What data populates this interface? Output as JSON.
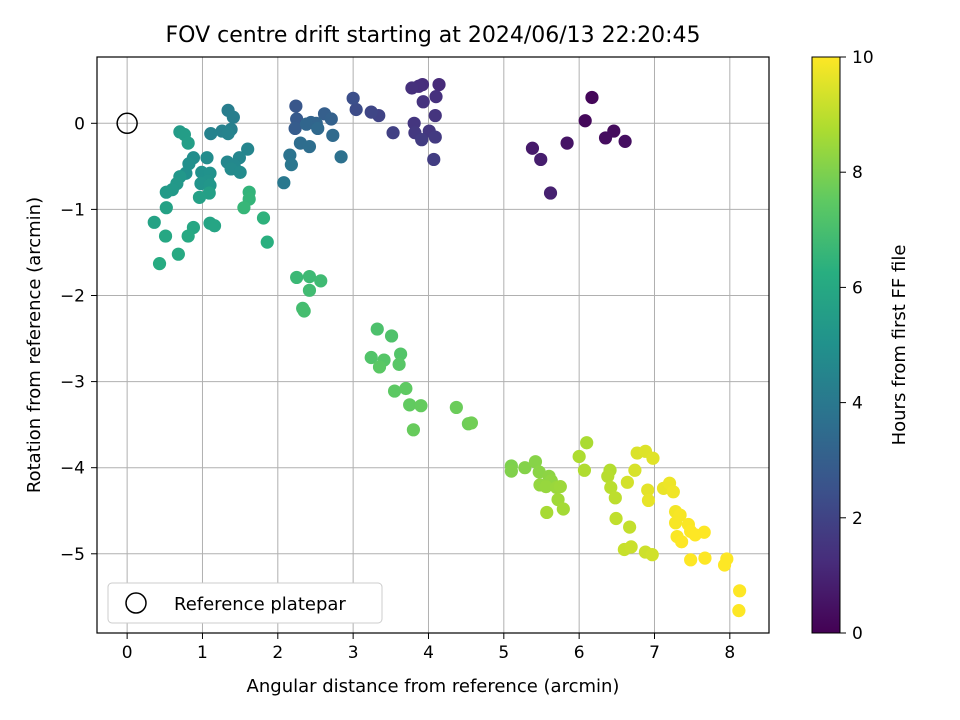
{
  "chart_data": {
    "type": "scatter",
    "title": "FOV centre drift starting at 2024/06/13 22:20:45",
    "xlabel": "Angular distance from reference (arcmin)",
    "ylabel": "Rotation from reference (arcmin)",
    "xlim": [
      -0.4,
      8.52
    ],
    "ylim": [
      -5.92,
      0.77
    ],
    "xticks": [
      "0",
      "1",
      "2",
      "3",
      "4",
      "5",
      "6",
      "7",
      "8"
    ],
    "yticks": [
      "0",
      "−1",
      "−2",
      "−3",
      "−4",
      "−5"
    ],
    "grid": true,
    "legend": {
      "placement": "lower-left",
      "entries": [
        "Reference platepar"
      ]
    },
    "reference_point": {
      "x": 0,
      "y": 0
    },
    "colorbar": {
      "label": "Hours from first FF file",
      "range": [
        0,
        10
      ],
      "ticks": [
        "0",
        "2",
        "4",
        "6",
        "8",
        "10"
      ],
      "colormap": "viridis"
    },
    "points": [
      {
        "x": 6.17,
        "y": 0.3,
        "h": 0.15
      },
      {
        "x": 6.08,
        "y": 0.03,
        "h": 0.2
      },
      {
        "x": 6.46,
        "y": -0.09,
        "h": 0.3
      },
      {
        "x": 6.35,
        "y": -0.17,
        "h": 0.35
      },
      {
        "x": 6.61,
        "y": -0.21,
        "h": 0.4
      },
      {
        "x": 5.84,
        "y": -0.23,
        "h": 0.55
      },
      {
        "x": 5.38,
        "y": -0.29,
        "h": 0.7
      },
      {
        "x": 5.49,
        "y": -0.42,
        "h": 0.8
      },
      {
        "x": 5.62,
        "y": -0.81,
        "h": 0.9
      },
      {
        "x": 4.14,
        "y": 0.45,
        "h": 1.2
      },
      {
        "x": 3.92,
        "y": 0.45,
        "h": 1.25
      },
      {
        "x": 3.87,
        "y": 0.43,
        "h": 1.3
      },
      {
        "x": 3.78,
        "y": 0.41,
        "h": 1.35
      },
      {
        "x": 4.1,
        "y": 0.31,
        "h": 1.4
      },
      {
        "x": 3.93,
        "y": 0.25,
        "h": 1.45
      },
      {
        "x": 4.09,
        "y": 0.09,
        "h": 1.5
      },
      {
        "x": 3.81,
        "y": 0.0,
        "h": 1.55
      },
      {
        "x": 4.01,
        "y": -0.09,
        "h": 1.6
      },
      {
        "x": 3.82,
        "y": -0.11,
        "h": 1.65
      },
      {
        "x": 4.09,
        "y": -0.16,
        "h": 1.7
      },
      {
        "x": 3.91,
        "y": -0.19,
        "h": 1.75
      },
      {
        "x": 4.07,
        "y": -0.42,
        "h": 1.8
      },
      {
        "x": 3.53,
        "y": -0.11,
        "h": 1.9
      },
      {
        "x": 3.34,
        "y": 0.09,
        "h": 2.0
      },
      {
        "x": 3.24,
        "y": 0.13,
        "h": 2.1
      },
      {
        "x": 3.04,
        "y": 0.16,
        "h": 2.3
      },
      {
        "x": 3.0,
        "y": 0.29,
        "h": 2.4
      },
      {
        "x": 2.24,
        "y": 0.2,
        "h": 2.7
      },
      {
        "x": 2.25,
        "y": 0.05,
        "h": 2.8
      },
      {
        "x": 2.23,
        "y": -0.06,
        "h": 2.9
      },
      {
        "x": 2.62,
        "y": 0.11,
        "h": 3.0
      },
      {
        "x": 2.71,
        "y": 0.05,
        "h": 3.1
      },
      {
        "x": 2.44,
        "y": 0.01,
        "h": 3.2
      },
      {
        "x": 2.51,
        "y": 0.0,
        "h": 3.25
      },
      {
        "x": 2.38,
        "y": -0.01,
        "h": 3.3
      },
      {
        "x": 2.53,
        "y": -0.06,
        "h": 3.4
      },
      {
        "x": 2.73,
        "y": -0.14,
        "h": 3.45
      },
      {
        "x": 2.3,
        "y": -0.23,
        "h": 3.55
      },
      {
        "x": 2.42,
        "y": -0.27,
        "h": 3.6
      },
      {
        "x": 2.84,
        "y": -0.39,
        "h": 3.7
      },
      {
        "x": 2.16,
        "y": -0.37,
        "h": 3.8
      },
      {
        "x": 2.18,
        "y": -0.48,
        "h": 3.9
      },
      {
        "x": 2.08,
        "y": -0.69,
        "h": 4.0
      },
      {
        "x": 1.34,
        "y": 0.15,
        "h": 4.2
      },
      {
        "x": 1.41,
        "y": 0.07,
        "h": 4.25
      },
      {
        "x": 1.38,
        "y": -0.07,
        "h": 4.3
      },
      {
        "x": 1.26,
        "y": -0.09,
        "h": 4.35
      },
      {
        "x": 1.11,
        "y": -0.12,
        "h": 4.4
      },
      {
        "x": 1.34,
        "y": -0.12,
        "h": 4.45
      },
      {
        "x": 1.6,
        "y": -0.3,
        "h": 4.5
      },
      {
        "x": 1.49,
        "y": -0.4,
        "h": 4.55
      },
      {
        "x": 1.33,
        "y": -0.45,
        "h": 4.6
      },
      {
        "x": 1.42,
        "y": -0.49,
        "h": 4.65
      },
      {
        "x": 1.38,
        "y": -0.53,
        "h": 4.7
      },
      {
        "x": 1.5,
        "y": -0.57,
        "h": 4.75
      },
      {
        "x": 1.06,
        "y": -0.4,
        "h": 4.8
      },
      {
        "x": 0.88,
        "y": -0.4,
        "h": 4.85
      },
      {
        "x": 0.82,
        "y": -0.47,
        "h": 4.9
      },
      {
        "x": 0.78,
        "y": -0.58,
        "h": 4.95
      },
      {
        "x": 0.99,
        "y": -0.57,
        "h": 5.0
      },
      {
        "x": 1.1,
        "y": -0.58,
        "h": 5.05
      },
      {
        "x": 1.07,
        "y": -0.67,
        "h": 5.1
      },
      {
        "x": 0.98,
        "y": -0.7,
        "h": 5.15
      },
      {
        "x": 1.1,
        "y": -0.72,
        "h": 5.2
      },
      {
        "x": 0.7,
        "y": -0.62,
        "h": 5.25
      },
      {
        "x": 0.66,
        "y": -0.7,
        "h": 5.3
      },
      {
        "x": 0.6,
        "y": -0.77,
        "h": 5.35
      },
      {
        "x": 0.52,
        "y": -0.8,
        "h": 5.4
      },
      {
        "x": 0.7,
        "y": -0.1,
        "h": 5.45
      },
      {
        "x": 0.76,
        "y": -0.13,
        "h": 5.5
      },
      {
        "x": 0.81,
        "y": -0.23,
        "h": 5.55
      },
      {
        "x": 1.09,
        "y": -0.81,
        "h": 5.6
      },
      {
        "x": 0.96,
        "y": -0.86,
        "h": 5.65
      },
      {
        "x": 0.52,
        "y": -0.98,
        "h": 5.7
      },
      {
        "x": 0.36,
        "y": -1.15,
        "h": 5.75
      },
      {
        "x": 1.1,
        "y": -1.16,
        "h": 5.8
      },
      {
        "x": 1.16,
        "y": -1.19,
        "h": 5.85
      },
      {
        "x": 0.88,
        "y": -1.21,
        "h": 5.9
      },
      {
        "x": 0.51,
        "y": -1.31,
        "h": 5.95
      },
      {
        "x": 0.81,
        "y": -1.31,
        "h": 6.0
      },
      {
        "x": 0.68,
        "y": -1.52,
        "h": 6.05
      },
      {
        "x": 0.43,
        "y": -1.63,
        "h": 6.1
      },
      {
        "x": 1.86,
        "y": -1.38,
        "h": 6.3
      },
      {
        "x": 1.81,
        "y": -1.1,
        "h": 6.4
      },
      {
        "x": 1.62,
        "y": -0.8,
        "h": 6.5
      },
      {
        "x": 1.62,
        "y": -0.88,
        "h": 6.55
      },
      {
        "x": 1.55,
        "y": -0.98,
        "h": 6.6
      },
      {
        "x": 2.25,
        "y": -1.79,
        "h": 6.7
      },
      {
        "x": 2.42,
        "y": -1.78,
        "h": 6.75
      },
      {
        "x": 2.57,
        "y": -1.83,
        "h": 6.8
      },
      {
        "x": 2.42,
        "y": -1.94,
        "h": 6.85
      },
      {
        "x": 2.33,
        "y": -2.15,
        "h": 6.9
      },
      {
        "x": 2.35,
        "y": -2.18,
        "h": 6.95
      },
      {
        "x": 3.32,
        "y": -2.39,
        "h": 7.1
      },
      {
        "x": 3.51,
        "y": -2.47,
        "h": 7.15
      },
      {
        "x": 3.24,
        "y": -2.72,
        "h": 7.2
      },
      {
        "x": 3.63,
        "y": -2.68,
        "h": 7.25
      },
      {
        "x": 3.41,
        "y": -2.75,
        "h": 7.3
      },
      {
        "x": 3.61,
        "y": -2.8,
        "h": 7.35
      },
      {
        "x": 3.35,
        "y": -2.83,
        "h": 7.4
      },
      {
        "x": 3.55,
        "y": -3.11,
        "h": 7.45
      },
      {
        "x": 3.7,
        "y": -3.08,
        "h": 7.5
      },
      {
        "x": 3.75,
        "y": -3.27,
        "h": 7.55
      },
      {
        "x": 3.9,
        "y": -3.28,
        "h": 7.6
      },
      {
        "x": 3.8,
        "y": -3.56,
        "h": 7.65
      },
      {
        "x": 4.37,
        "y": -3.3,
        "h": 7.7
      },
      {
        "x": 4.53,
        "y": -3.49,
        "h": 7.75
      },
      {
        "x": 4.57,
        "y": -3.48,
        "h": 7.8
      },
      {
        "x": 5.1,
        "y": -3.98,
        "h": 8.0
      },
      {
        "x": 5.1,
        "y": -4.04,
        "h": 8.05
      },
      {
        "x": 5.28,
        "y": -4.0,
        "h": 8.1
      },
      {
        "x": 5.42,
        "y": -3.93,
        "h": 8.15
      },
      {
        "x": 5.47,
        "y": -4.05,
        "h": 8.2
      },
      {
        "x": 5.6,
        "y": -4.1,
        "h": 8.25
      },
      {
        "x": 5.63,
        "y": -4.15,
        "h": 8.3
      },
      {
        "x": 5.48,
        "y": -4.2,
        "h": 8.35
      },
      {
        "x": 5.56,
        "y": -4.22,
        "h": 8.4
      },
      {
        "x": 5.7,
        "y": -4.23,
        "h": 8.45
      },
      {
        "x": 5.75,
        "y": -4.22,
        "h": 8.5
      },
      {
        "x": 5.72,
        "y": -4.37,
        "h": 8.55
      },
      {
        "x": 5.79,
        "y": -4.48,
        "h": 8.6
      },
      {
        "x": 5.57,
        "y": -4.52,
        "h": 8.65
      },
      {
        "x": 6.1,
        "y": -3.71,
        "h": 8.7
      },
      {
        "x": 6.0,
        "y": -3.87,
        "h": 8.75
      },
      {
        "x": 6.07,
        "y": -4.03,
        "h": 8.8
      },
      {
        "x": 6.41,
        "y": -4.03,
        "h": 8.85
      },
      {
        "x": 6.38,
        "y": -4.1,
        "h": 8.9
      },
      {
        "x": 6.42,
        "y": -4.23,
        "h": 8.95
      },
      {
        "x": 6.48,
        "y": -4.35,
        "h": 9.0
      },
      {
        "x": 6.49,
        "y": -4.59,
        "h": 9.05
      },
      {
        "x": 6.67,
        "y": -4.69,
        "h": 9.1
      },
      {
        "x": 6.6,
        "y": -4.95,
        "h": 9.15
      },
      {
        "x": 6.69,
        "y": -4.92,
        "h": 9.2
      },
      {
        "x": 6.88,
        "y": -4.98,
        "h": 9.25
      },
      {
        "x": 6.97,
        "y": -5.01,
        "h": 9.3
      },
      {
        "x": 6.64,
        "y": -4.17,
        "h": 9.35
      },
      {
        "x": 6.74,
        "y": -4.03,
        "h": 9.4
      },
      {
        "x": 6.77,
        "y": -3.83,
        "h": 9.45
      },
      {
        "x": 6.88,
        "y": -3.81,
        "h": 9.5
      },
      {
        "x": 6.98,
        "y": -3.89,
        "h": 9.55
      },
      {
        "x": 6.91,
        "y": -4.26,
        "h": 9.6
      },
      {
        "x": 6.92,
        "y": -4.38,
        "h": 9.65
      },
      {
        "x": 7.12,
        "y": -4.24,
        "h": 9.7
      },
      {
        "x": 7.2,
        "y": -4.18,
        "h": 9.75
      },
      {
        "x": 7.25,
        "y": -4.28,
        "h": 9.8
      },
      {
        "x": 7.28,
        "y": -4.51,
        "h": 9.85
      },
      {
        "x": 7.34,
        "y": -4.55,
        "h": 9.9
      },
      {
        "x": 7.28,
        "y": -4.64,
        "h": 9.9
      },
      {
        "x": 7.45,
        "y": -4.66,
        "h": 9.95
      },
      {
        "x": 7.3,
        "y": -4.8,
        "h": 9.95
      },
      {
        "x": 7.36,
        "y": -4.86,
        "h": 10.0
      },
      {
        "x": 7.48,
        "y": -4.74,
        "h": 10.0
      },
      {
        "x": 7.54,
        "y": -4.78,
        "h": 10.0
      },
      {
        "x": 7.66,
        "y": -4.75,
        "h": 10.0
      },
      {
        "x": 7.48,
        "y": -5.07,
        "h": 10.0
      },
      {
        "x": 7.67,
        "y": -5.05,
        "h": 10.0
      },
      {
        "x": 7.96,
        "y": -5.06,
        "h": 10.0
      },
      {
        "x": 7.93,
        "y": -5.13,
        "h": 10.0
      },
      {
        "x": 8.13,
        "y": -5.43,
        "h": 10.0
      },
      {
        "x": 8.12,
        "y": -5.66,
        "h": 10.0
      }
    ]
  }
}
